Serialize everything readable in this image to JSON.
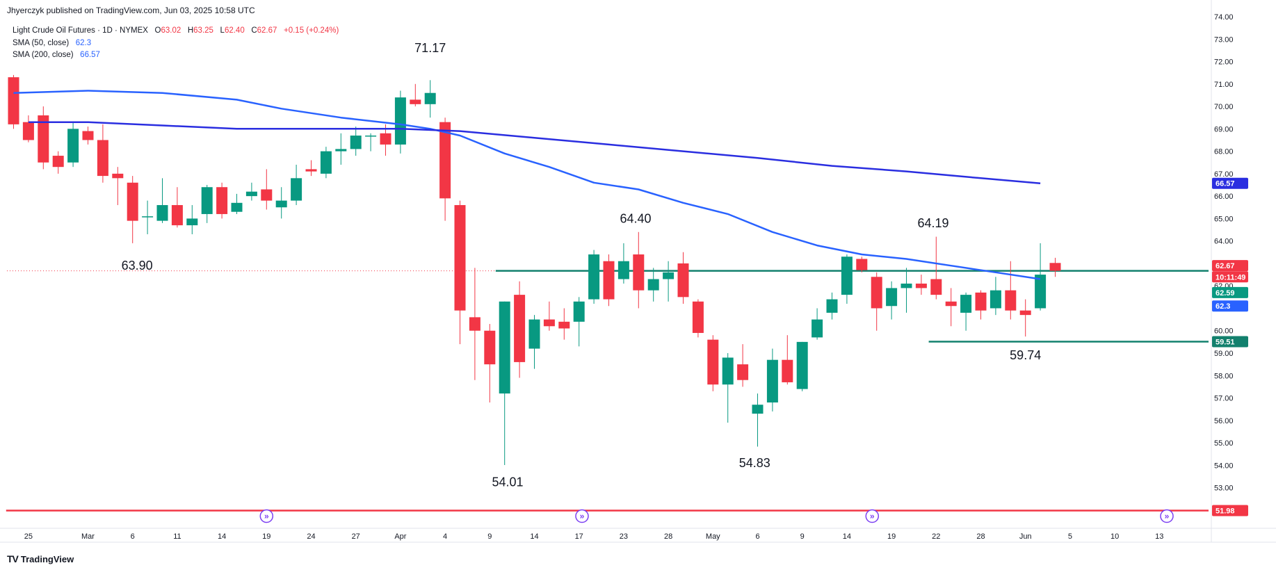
{
  "header": {
    "publisher": "Jhyerczyk published on TradingView.com, Jun 03, 2025 10:58 UTC"
  },
  "legend": {
    "symbol": "Light Crude Oil Futures · 1D · NYMEX",
    "o_label": "O",
    "o_value": "63.02",
    "h_label": "H",
    "h_value": "63.25",
    "l_label": "L",
    "l_value": "62.40",
    "c_label": "C",
    "c_value": "62.67",
    "change": "+0.15 (+0.24%)",
    "sma50_label": "SMA (50, close)",
    "sma50_value": "62.3",
    "sma200_label": "SMA (200, close)",
    "sma200_value": "66.57"
  },
  "footer": {
    "brand": "TradingView",
    "logo": "TV"
  },
  "colors": {
    "up": "#089981",
    "down": "#f23645",
    "sma50": "#2962ff",
    "sma200": "#2a2ee0",
    "level": "#12806d",
    "support": "#f23645",
    "text": "#131722"
  },
  "chart_data": {
    "type": "candlestick",
    "y_axis": {
      "min": 51.5,
      "max": 74.0,
      "ticks": [
        53,
        54,
        55,
        56,
        57,
        58,
        59,
        60,
        61,
        62,
        63,
        64,
        65,
        66,
        67,
        68,
        69,
        70,
        71,
        72,
        73,
        74
      ],
      "position": "right"
    },
    "x_ticks": [
      {
        "label": "25",
        "i": 1
      },
      {
        "label": "Mar",
        "i": 5
      },
      {
        "label": "6",
        "i": 8
      },
      {
        "label": "11",
        "i": 11
      },
      {
        "label": "14",
        "i": 14
      },
      {
        "label": "19",
        "i": 17
      },
      {
        "label": "24",
        "i": 20
      },
      {
        "label": "27",
        "i": 23
      },
      {
        "label": "Apr",
        "i": 26
      },
      {
        "label": "4",
        "i": 29
      },
      {
        "label": "9",
        "i": 32
      },
      {
        "label": "14",
        "i": 35
      },
      {
        "label": "17",
        "i": 38
      },
      {
        "label": "23",
        "i": 41
      },
      {
        "label": "28",
        "i": 44
      },
      {
        "label": "May",
        "i": 47
      },
      {
        "label": "6",
        "i": 50
      },
      {
        "label": "9",
        "i": 53
      },
      {
        "label": "14",
        "i": 56
      },
      {
        "label": "19",
        "i": 59
      },
      {
        "label": "22",
        "i": 62
      },
      {
        "label": "28",
        "i": 65
      },
      {
        "label": "Jun",
        "i": 68
      },
      {
        "label": "5",
        "i": 71
      },
      {
        "label": "10",
        "i": 74
      },
      {
        "label": "13",
        "i": 77
      }
    ],
    "candles": [
      {
        "o": 71.3,
        "h": 71.4,
        "l": 69.0,
        "c": 69.2
      },
      {
        "o": 69.3,
        "h": 69.6,
        "l": 68.4,
        "c": 68.5
      },
      {
        "o": 69.6,
        "h": 70.0,
        "l": 67.2,
        "c": 67.5
      },
      {
        "o": 67.8,
        "h": 68.0,
        "l": 67.0,
        "c": 67.3
      },
      {
        "o": 67.5,
        "h": 69.3,
        "l": 67.3,
        "c": 69.0
      },
      {
        "o": 68.9,
        "h": 69.1,
        "l": 68.3,
        "c": 68.5
      },
      {
        "o": 68.5,
        "h": 69.2,
        "l": 66.6,
        "c": 66.9
      },
      {
        "o": 67.0,
        "h": 67.3,
        "l": 65.6,
        "c": 66.8
      },
      {
        "o": 66.6,
        "h": 66.9,
        "l": 63.9,
        "c": 64.9
      },
      {
        "o": 65.1,
        "h": 65.8,
        "l": 64.3,
        "c": 65.1
      },
      {
        "o": 64.9,
        "h": 66.8,
        "l": 64.8,
        "c": 65.6
      },
      {
        "o": 65.6,
        "h": 66.4,
        "l": 64.6,
        "c": 64.7
      },
      {
        "o": 64.7,
        "h": 65.6,
        "l": 64.3,
        "c": 65.0
      },
      {
        "o": 65.2,
        "h": 66.5,
        "l": 64.8,
        "c": 66.4
      },
      {
        "o": 66.4,
        "h": 66.6,
        "l": 65.0,
        "c": 65.2
      },
      {
        "o": 65.3,
        "h": 66.1,
        "l": 65.2,
        "c": 65.7
      },
      {
        "o": 66.0,
        "h": 66.6,
        "l": 65.8,
        "c": 66.2
      },
      {
        "o": 66.3,
        "h": 67.2,
        "l": 65.4,
        "c": 65.8
      },
      {
        "o": 65.5,
        "h": 66.4,
        "l": 65.0,
        "c": 65.8
      },
      {
        "o": 65.8,
        "h": 67.4,
        "l": 65.6,
        "c": 66.8
      },
      {
        "o": 67.2,
        "h": 67.6,
        "l": 66.9,
        "c": 67.1
      },
      {
        "o": 67.0,
        "h": 68.2,
        "l": 66.8,
        "c": 68.0
      },
      {
        "o": 68.0,
        "h": 68.8,
        "l": 67.4,
        "c": 68.1
      },
      {
        "o": 68.1,
        "h": 69.1,
        "l": 67.8,
        "c": 68.7
      },
      {
        "o": 68.7,
        "h": 68.8,
        "l": 68.0,
        "c": 68.7
      },
      {
        "o": 68.8,
        "h": 69.2,
        "l": 67.8,
        "c": 68.3
      },
      {
        "o": 68.3,
        "h": 70.7,
        "l": 67.9,
        "c": 70.4
      },
      {
        "o": 70.3,
        "h": 71.0,
        "l": 70.0,
        "c": 70.1
      },
      {
        "o": 70.1,
        "h": 71.17,
        "l": 69.5,
        "c": 70.6
      },
      {
        "o": 69.3,
        "h": 69.5,
        "l": 64.9,
        "c": 65.9
      },
      {
        "o": 65.6,
        "h": 65.8,
        "l": 59.4,
        "c": 60.9
      },
      {
        "o": 60.6,
        "h": 62.8,
        "l": 57.8,
        "c": 60.0
      },
      {
        "o": 60.0,
        "h": 60.3,
        "l": 56.8,
        "c": 58.5
      },
      {
        "o": 57.2,
        "h": 61.3,
        "l": 54.01,
        "c": 61.3
      },
      {
        "o": 61.6,
        "h": 62.2,
        "l": 57.9,
        "c": 58.6
      },
      {
        "o": 59.2,
        "h": 60.7,
        "l": 58.3,
        "c": 60.5
      },
      {
        "o": 60.5,
        "h": 61.3,
        "l": 60.0,
        "c": 60.2
      },
      {
        "o": 60.4,
        "h": 61.0,
        "l": 59.6,
        "c": 60.1
      },
      {
        "o": 60.4,
        "h": 61.5,
        "l": 59.3,
        "c": 61.3
      },
      {
        "o": 61.4,
        "h": 63.6,
        "l": 61.2,
        "c": 63.4
      },
      {
        "o": 63.1,
        "h": 63.4,
        "l": 61.1,
        "c": 61.4
      },
      {
        "o": 62.3,
        "h": 63.9,
        "l": 62.1,
        "c": 63.1
      },
      {
        "o": 63.4,
        "h": 64.4,
        "l": 61.0,
        "c": 61.8
      },
      {
        "o": 61.8,
        "h": 62.8,
        "l": 61.3,
        "c": 62.3
      },
      {
        "o": 62.3,
        "h": 63.1,
        "l": 61.3,
        "c": 62.6
      },
      {
        "o": 63.0,
        "h": 63.5,
        "l": 61.2,
        "c": 61.5
      },
      {
        "o": 61.3,
        "h": 61.4,
        "l": 59.7,
        "c": 59.9
      },
      {
        "o": 59.6,
        "h": 59.8,
        "l": 57.3,
        "c": 57.6
      },
      {
        "o": 57.6,
        "h": 59.0,
        "l": 55.9,
        "c": 58.8
      },
      {
        "o": 58.5,
        "h": 59.4,
        "l": 57.5,
        "c": 57.8
      },
      {
        "o": 56.3,
        "h": 57.2,
        "l": 54.83,
        "c": 56.7
      },
      {
        "o": 56.8,
        "h": 59.2,
        "l": 56.4,
        "c": 58.7
      },
      {
        "o": 58.7,
        "h": 59.8,
        "l": 57.6,
        "c": 57.7
      },
      {
        "o": 57.4,
        "h": 59.5,
        "l": 57.3,
        "c": 59.5
      },
      {
        "o": 59.7,
        "h": 61.0,
        "l": 59.6,
        "c": 60.5
      },
      {
        "o": 60.8,
        "h": 61.7,
        "l": 60.5,
        "c": 61.4
      },
      {
        "o": 61.6,
        "h": 63.4,
        "l": 61.2,
        "c": 63.3
      },
      {
        "o": 63.2,
        "h": 63.3,
        "l": 62.6,
        "c": 62.7
      },
      {
        "o": 62.4,
        "h": 62.6,
        "l": 60.0,
        "c": 61.0
      },
      {
        "o": 61.1,
        "h": 62.2,
        "l": 60.5,
        "c": 61.9
      },
      {
        "o": 61.9,
        "h": 62.8,
        "l": 60.8,
        "c": 62.1
      },
      {
        "o": 62.1,
        "h": 62.5,
        "l": 61.6,
        "c": 61.9
      },
      {
        "o": 62.3,
        "h": 64.19,
        "l": 61.4,
        "c": 61.6
      },
      {
        "o": 61.3,
        "h": 61.9,
        "l": 60.2,
        "c": 61.1
      },
      {
        "o": 60.8,
        "h": 61.7,
        "l": 60.0,
        "c": 61.6
      },
      {
        "o": 61.7,
        "h": 61.8,
        "l": 60.5,
        "c": 60.9
      },
      {
        "o": 61.0,
        "h": 62.4,
        "l": 60.7,
        "c": 61.8
      },
      {
        "o": 61.8,
        "h": 63.1,
        "l": 60.5,
        "c": 60.9
      },
      {
        "o": 60.9,
        "h": 61.4,
        "l": 59.74,
        "c": 60.7
      },
      {
        "o": 61.0,
        "h": 63.9,
        "l": 60.9,
        "c": 62.5
      },
      {
        "o": 63.02,
        "h": 63.25,
        "l": 62.4,
        "c": 62.67
      }
    ],
    "sma50": [
      {
        "i": 0,
        "v": 70.6
      },
      {
        "i": 5,
        "v": 70.7
      },
      {
        "i": 10,
        "v": 70.6
      },
      {
        "i": 15,
        "v": 70.3
      },
      {
        "i": 18,
        "v": 69.9
      },
      {
        "i": 22,
        "v": 69.5
      },
      {
        "i": 26,
        "v": 69.2
      },
      {
        "i": 28,
        "v": 69.0
      },
      {
        "i": 30,
        "v": 68.7
      },
      {
        "i": 33,
        "v": 67.9
      },
      {
        "i": 36,
        "v": 67.3
      },
      {
        "i": 39,
        "v": 66.6
      },
      {
        "i": 42,
        "v": 66.3
      },
      {
        "i": 45,
        "v": 65.7
      },
      {
        "i": 48,
        "v": 65.2
      },
      {
        "i": 51,
        "v": 64.4
      },
      {
        "i": 54,
        "v": 63.8
      },
      {
        "i": 57,
        "v": 63.4
      },
      {
        "i": 60,
        "v": 63.2
      },
      {
        "i": 63,
        "v": 62.9
      },
      {
        "i": 66,
        "v": 62.6
      },
      {
        "i": 69,
        "v": 62.3
      }
    ],
    "sma200": [
      {
        "i": 1,
        "v": 69.3
      },
      {
        "i": 5,
        "v": 69.3
      },
      {
        "i": 10,
        "v": 69.15
      },
      {
        "i": 15,
        "v": 69.0
      },
      {
        "i": 20,
        "v": 69.0
      },
      {
        "i": 26,
        "v": 69.0
      },
      {
        "i": 30,
        "v": 68.9
      },
      {
        "i": 35,
        "v": 68.6
      },
      {
        "i": 40,
        "v": 68.3
      },
      {
        "i": 45,
        "v": 68.0
      },
      {
        "i": 50,
        "v": 67.7
      },
      {
        "i": 55,
        "v": 67.35
      },
      {
        "i": 60,
        "v": 67.1
      },
      {
        "i": 65,
        "v": 66.8
      },
      {
        "i": 69,
        "v": 66.57
      }
    ],
    "hlines": [
      {
        "name": "resistance-line",
        "value": 62.67,
        "from_i": 32.4,
        "to_i": 84.0,
        "color": "#12806d"
      },
      {
        "name": "support-line",
        "value": 59.51,
        "from_i": 61.5,
        "to_i": 84.0,
        "color": "#12806d"
      },
      {
        "name": "low-line",
        "value": 51.98,
        "from_i": -0.5,
        "to_i": 84.0,
        "color": "#f23645"
      }
    ],
    "annotations": [
      {
        "text": "71.17",
        "i": 28.0,
        "price": 72.6
      },
      {
        "text": "63.90",
        "i": 8.3,
        "price": 62.9
      },
      {
        "text": "54.01",
        "i": 33.2,
        "price": 53.25
      },
      {
        "text": "64.40",
        "i": 41.8,
        "price": 65.0
      },
      {
        "text": "54.83",
        "i": 49.8,
        "price": 54.1
      },
      {
        "text": "64.19",
        "i": 61.8,
        "price": 64.8
      },
      {
        "text": "59.74",
        "i": 68.0,
        "price": 58.9
      }
    ],
    "price_labels": [
      {
        "text": "66.57",
        "price": 66.57,
        "color": "#2a2ee0"
      },
      {
        "text": "62.67",
        "price": 62.9,
        "color": "#f23645"
      },
      {
        "text": "10:11:49",
        "price": 62.4,
        "color": "#f23645"
      },
      {
        "text": "62.59",
        "price": 61.7,
        "color": "#089981"
      },
      {
        "text": "62.3",
        "price": 61.1,
        "color": "#2962ff"
      },
      {
        "text": "59.51",
        "price": 59.51,
        "color": "#12806d"
      },
      {
        "text": "51.98",
        "price": 51.98,
        "color": "#f23645"
      }
    ],
    "event_markers": [
      17.0,
      38.2,
      57.7,
      77.5
    ],
    "dotted_price_line": 62.67
  }
}
